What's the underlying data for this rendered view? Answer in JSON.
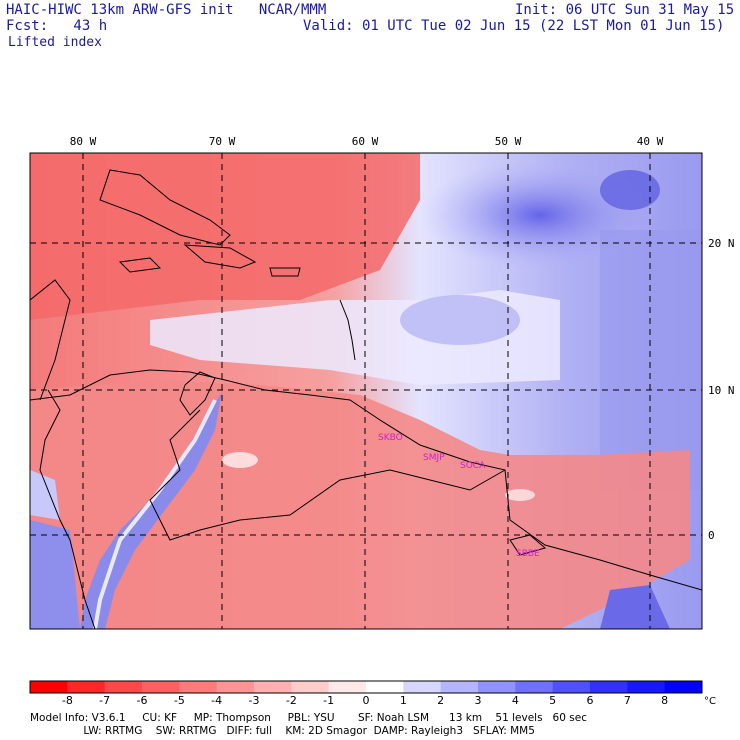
{
  "header": {
    "model_line": "HAIC-HIWC 13km ARW-GFS init   NCAR/MMM",
    "init_line": "Init: 06 UTC Sun 31 May 15",
    "fcst_line": "Fcst:   43 h",
    "valid_line": "Valid: 01 UTC Tue 02 Jun 15 (22 LST Mon 01 Jun 15)",
    "field_name": "Lifted index"
  },
  "map": {
    "lon_labels": [
      "80 W",
      "70 W",
      "60 W",
      "50 W",
      "40 W"
    ],
    "lat_labels": [
      "20 N",
      "10 N",
      "0"
    ],
    "stations": [
      "SKBO",
      "SMJP",
      "SOCA",
      "SBBE"
    ],
    "negative_color": "#f04848",
    "positive_color": "#4848e0",
    "neutral_color": "#ffffff"
  },
  "colorbar": {
    "ticks": [
      "-8",
      "-7",
      "-6",
      "-5",
      "-4",
      "-3",
      "-2",
      "-1",
      "0",
      "1",
      "2",
      "3",
      "4",
      "5",
      "6",
      "7",
      "8"
    ],
    "unit": "°C",
    "colors": [
      "#ff0000",
      "#ff2828",
      "#ff4848",
      "#ff6060",
      "#ff7a7a",
      "#ff9494",
      "#ffb0b0",
      "#ffcccc",
      "#ffe8e8",
      "#ffffff",
      "#d6d6ff",
      "#b4b4ff",
      "#9292ff",
      "#7070ff",
      "#5050ff",
      "#3030ff",
      "#1818ff",
      "#0000ff"
    ]
  },
  "footer": {
    "line1": "Model Info: V3.6.1     CU: KF     MP: Thompson     PBL: YSU       SF: Noah LSM      13 km    51 levels   60 sec",
    "line2": "                LW: RRTMG    SW: RRTMG   DIFF: full    KM: 2D Smagor  DAMP: Rayleigh3   SFLAY: MM5"
  }
}
